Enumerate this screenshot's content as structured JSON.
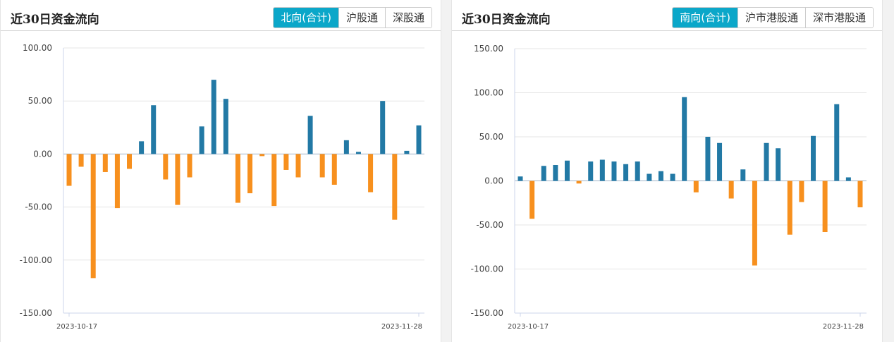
{
  "panels": [
    {
      "title": "近30日资金流向",
      "tabs": [
        "北向(合计)",
        "沪股通",
        "深股通"
      ],
      "active": 0
    },
    {
      "title": "近30日资金流向",
      "tabs": [
        "南向(合计)",
        "沪市港股通",
        "深市港股通"
      ],
      "active": 0
    }
  ],
  "colors": {
    "positive": "#2279a5",
    "negative": "#f7901e",
    "accent": "#0ba7c9"
  },
  "chart_data": [
    {
      "type": "bar",
      "ylim": [
        -150,
        100
      ],
      "yticks": [
        "100.00",
        "50.00",
        "0.00",
        "-50.00",
        "-100.00",
        "-150.00"
      ],
      "ytick_values": [
        100,
        50,
        0,
        -50,
        -100,
        -150
      ],
      "x_start": "2023-10-17",
      "x_end": "2023-11-28",
      "grid": true,
      "values": [
        -30,
        -12,
        -117,
        -17,
        -51,
        -14,
        12,
        46,
        -24,
        -48,
        -22,
        26,
        70,
        52,
        -46,
        -37,
        -2,
        -49,
        -15,
        -22,
        36,
        -22,
        -29,
        13,
        2,
        -36,
        50,
        -62,
        3,
        27
      ]
    },
    {
      "type": "bar",
      "ylim": [
        -150,
        150
      ],
      "yticks": [
        "150.00",
        "100.00",
        "50.00",
        "0.00",
        "-50.00",
        "-100.00",
        "-150.00"
      ],
      "ytick_values": [
        150,
        100,
        50,
        0,
        -50,
        -100,
        -150
      ],
      "x_start": "2023-10-17",
      "x_end": "2023-11-28",
      "grid": true,
      "values": [
        5,
        -43,
        17,
        18,
        23,
        -3,
        22,
        24,
        22,
        19,
        22,
        8,
        11,
        8,
        95,
        -13,
        50,
        43,
        -20,
        13,
        -96,
        43,
        37,
        -61,
        -24,
        51,
        -58,
        87,
        4,
        -30
      ]
    }
  ]
}
